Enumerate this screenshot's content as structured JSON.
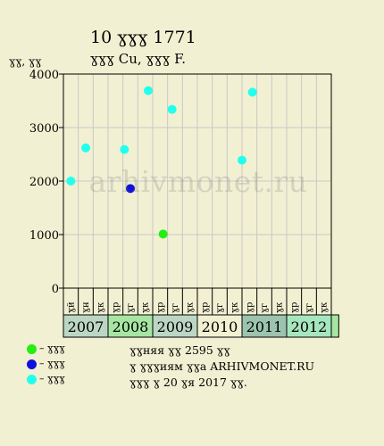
{
  "header": {
    "title": "10 ɣɣɣ 1771",
    "subtitle": "ɣɣɣ Cu, ɣɣɣ F.",
    "ylabel": "ɣɣ, ɣɣ"
  },
  "watermark": "arhivmonet.ru",
  "legend": [
    {
      "label": "– ɣɣɣ",
      "color": "#22ee11"
    },
    {
      "label": "– ɣɣɣ",
      "color": "#1010dd"
    },
    {
      "label": "– ɣɣɣ",
      "color": "#22ffee"
    }
  ],
  "info": {
    "line1": "ɣɣняя ɣɣ 2595 ɣɣ",
    "line2": "ɣ ɣɣɣиям ɣɣа ARHIVMONET.RU",
    "line3": "ɣɣɣ ɣ 20 ɣя 2017 ɣɣ."
  },
  "chart_data": {
    "type": "scatter",
    "ylim": [
      0,
      4000
    ],
    "yticks": [
      0,
      1000,
      2000,
      3000,
      4000
    ],
    "grid": true,
    "months": [
      "ɣй",
      "ɣн",
      "ɣк",
      "ɣр",
      "ɣг",
      "ɣк",
      "ɣр",
      "ɣг",
      "ɣк",
      "ɣр",
      "ɣг",
      "ɣк",
      "ɣр",
      "ɣг",
      "ɣк",
      "ɣр",
      "ɣг",
      "ɣк"
    ],
    "years": [
      {
        "label": "2007",
        "color": "#bcd6c4"
      },
      {
        "label": "2008",
        "color": "#a6e6a2"
      },
      {
        "label": "2009",
        "color": "#bcd6c4"
      },
      {
        "label": "2010",
        "color": "#f2f0d2"
      },
      {
        "label": "2011",
        "color": "#9cc3ad"
      },
      {
        "label": "2012",
        "color": "#a6e6be"
      }
    ],
    "points": [
      {
        "x": 0,
        "y": 2000,
        "color": "#22ffee"
      },
      {
        "x": 1,
        "y": 2620,
        "color": "#22ffee"
      },
      {
        "x": 3.6,
        "y": 2590,
        "color": "#22ffee"
      },
      {
        "x": 4.0,
        "y": 1860,
        "color": "#1010dd"
      },
      {
        "x": 5.2,
        "y": 3690,
        "color": "#22ffee"
      },
      {
        "x": 6.2,
        "y": 1010,
        "color": "#22ee11"
      },
      {
        "x": 6.8,
        "y": 3340,
        "color": "#22ffee"
      },
      {
        "x": 11.5,
        "y": 2390,
        "color": "#22ffee"
      },
      {
        "x": 12.2,
        "y": 3660,
        "color": "#22ffee"
      }
    ]
  }
}
